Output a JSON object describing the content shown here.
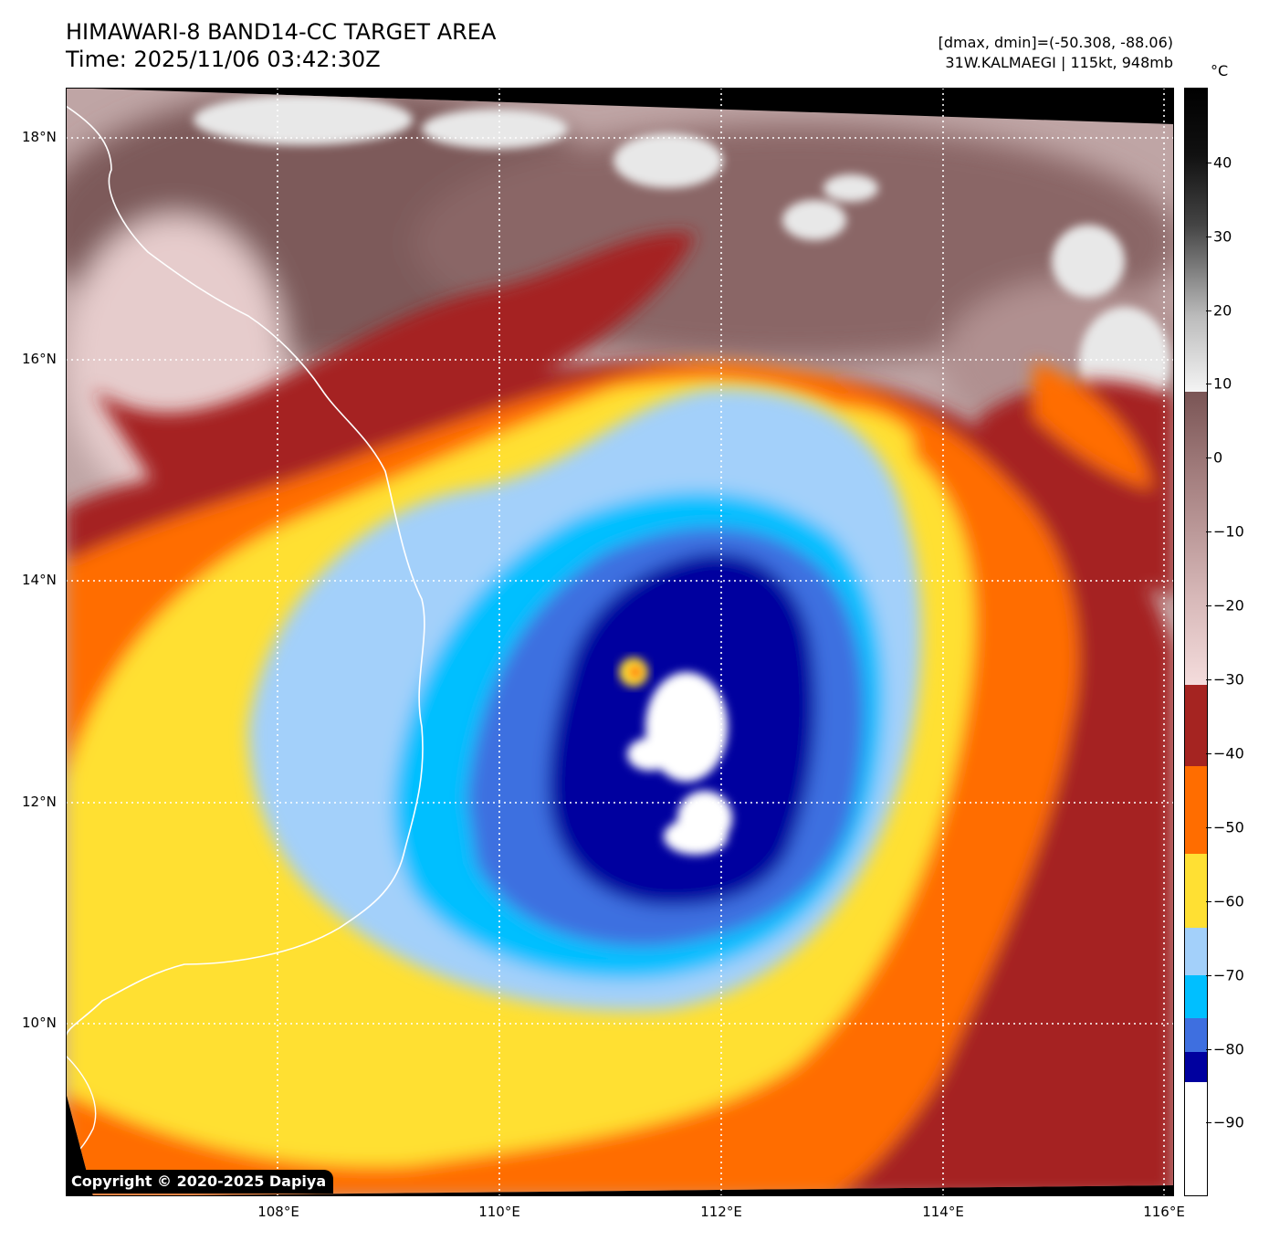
{
  "header": {
    "title_line1": "HIMAWARI-8 BAND14-CC TARGET AREA",
    "title_line2": "Time: 2025/11/06 03:42:30Z",
    "info_line1": "[dmax, dmin]=(-50.308, -88.06)",
    "info_line2": "31W.KALMAEGI | 115kt, 948mb"
  },
  "map": {
    "lat_labels": [
      "18°N",
      "16°N",
      "14°N",
      "12°N",
      "10°N"
    ],
    "lon_labels": [
      "108°E",
      "110°E",
      "112°E",
      "114°E",
      "116°E"
    ],
    "copyright": "Copyright © 2020-2025 Dapiya",
    "storm_name": "31W.KALMAEGI",
    "max_wind": "115kt",
    "min_pressure": "948mb"
  },
  "colorbar": {
    "unit": "°C",
    "tick_labels": [
      "40",
      "30",
      "20",
      "10",
      "0",
      "−10",
      "−20",
      "−30",
      "−40",
      "−50",
      "−60",
      "−70",
      "−80",
      "−90"
    ],
    "tick_values": [
      40,
      30,
      20,
      10,
      0,
      -10,
      -20,
      -30,
      -40,
      -50,
      -60,
      -70,
      -80,
      -90
    ],
    "range_min": -100,
    "range_max": 50,
    "colors": {
      "above_10_dark": "#000000",
      "10_light": "#f4f4f4",
      "mid_brown": "#7d5a5a",
      "minus30_pink": "#f4dcdc",
      "band_minus30_minus40": "#a52421",
      "band_minus40_minus50": "#ff6d00",
      "band_minus50_minus60": "#ffe033",
      "band_minus60_minus70": "#a3d0fa",
      "band_minus70_minus80": "#00bfff",
      "band_minus80_minus84": "#3e6fe0",
      "band_minus84_minus88": "#00009f",
      "band_below_minus88": "#ffffff"
    }
  }
}
